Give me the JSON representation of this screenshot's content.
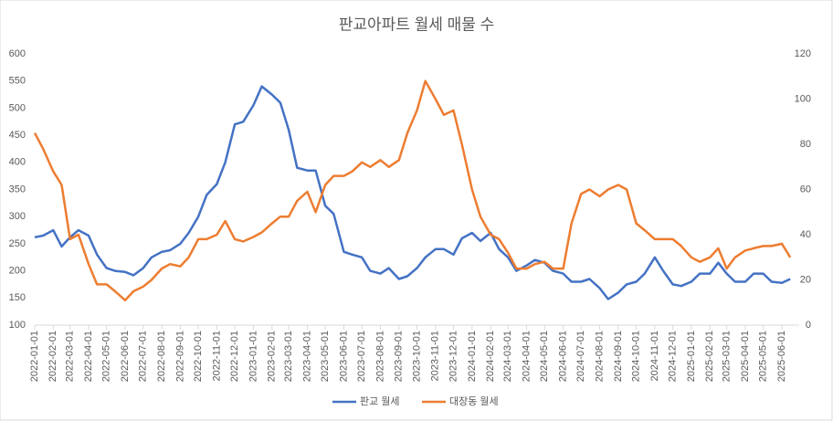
{
  "chart_data": {
    "type": "line",
    "title": "판교아파트 월세 매물 수",
    "x": [
      "2022-01-01",
      "2022-01-15",
      "2022-02-01",
      "2022-02-15",
      "2022-03-01",
      "2022-03-15",
      "2022-04-01",
      "2022-04-15",
      "2022-05-01",
      "2022-05-15",
      "2022-06-01",
      "2022-06-15",
      "2022-07-01",
      "2022-07-15",
      "2022-08-01",
      "2022-08-15",
      "2022-09-01",
      "2022-09-15",
      "2022-10-01",
      "2022-10-15",
      "2022-11-01",
      "2022-11-15",
      "2022-12-01",
      "2022-12-15",
      "2023-01-01",
      "2023-01-15",
      "2023-02-01",
      "2023-02-15",
      "2023-03-01",
      "2023-03-15",
      "2023-04-01",
      "2023-04-15",
      "2023-05-01",
      "2023-05-15",
      "2023-06-01",
      "2023-06-15",
      "2023-07-01",
      "2023-07-15",
      "2023-08-01",
      "2023-08-15",
      "2023-09-01",
      "2023-09-15",
      "2023-10-01",
      "2023-10-15",
      "2023-11-01",
      "2023-11-15",
      "2023-12-01",
      "2023-12-15",
      "2024-01-01",
      "2024-01-15",
      "2024-02-01",
      "2024-02-15",
      "2024-03-01",
      "2024-03-15",
      "2024-04-01",
      "2024-04-15",
      "2024-05-01",
      "2024-05-15",
      "2024-06-01",
      "2024-06-15",
      "2024-07-01",
      "2024-07-15",
      "2024-08-01",
      "2024-08-15",
      "2024-09-01",
      "2024-09-15",
      "2024-10-01",
      "2024-10-15",
      "2024-11-01",
      "2024-11-15",
      "2024-12-01",
      "2024-12-15",
      "2025-01-01",
      "2025-01-15",
      "2025-02-01",
      "2025-02-15",
      "2025-03-01",
      "2025-03-15",
      "2025-04-01",
      "2025-04-15",
      "2025-05-01",
      "2025-05-15",
      "2025-06-01",
      "2025-06-15"
    ],
    "series": [
      {
        "name": "판교 월세",
        "color": "#4472c4",
        "axis": "y",
        "values": [
          262,
          265,
          275,
          245,
          262,
          275,
          265,
          230,
          205,
          200,
          198,
          192,
          205,
          225,
          235,
          238,
          250,
          270,
          300,
          340,
          360,
          400,
          470,
          475,
          505,
          540,
          525,
          510,
          460,
          390,
          385,
          385,
          320,
          305,
          235,
          230,
          225,
          200,
          195,
          205,
          185,
          190,
          205,
          225,
          240,
          240,
          230,
          260,
          270,
          255,
          270,
          240,
          225,
          200,
          210,
          220,
          215,
          200,
          195,
          180,
          180,
          185,
          168,
          148,
          160,
          175,
          180,
          195,
          225,
          200,
          175,
          172,
          180,
          195,
          195,
          215,
          195,
          180,
          180,
          195,
          195,
          180,
          178,
          185
        ]
      },
      {
        "name": "대장동 월세",
        "color": "#ed7d31",
        "axis": "y2",
        "values": [
          85,
          78,
          68,
          62,
          38,
          40,
          27,
          18,
          18,
          15,
          11,
          15,
          17,
          20,
          25,
          27,
          26,
          30,
          38,
          38,
          40,
          46,
          38,
          37,
          39,
          41,
          45,
          48,
          48,
          55,
          59,
          50,
          62,
          66,
          66,
          68,
          72,
          70,
          73,
          70,
          73,
          85,
          95,
          108,
          100,
          93,
          95,
          80,
          60,
          48,
          40,
          38,
          32,
          25,
          25,
          27,
          28,
          25,
          25,
          45,
          58,
          60,
          57,
          60,
          62,
          60,
          45,
          42,
          38,
          38,
          38,
          35,
          30,
          28,
          30,
          34,
          25,
          30,
          33,
          34,
          35,
          35,
          36,
          30
        ]
      }
    ],
    "xlim": [
      "2022-01-01",
      "2025-06-30"
    ],
    "xticks": [
      "2022-01-01",
      "2022-02-01",
      "2022-03-01",
      "2022-04-01",
      "2022-05-01",
      "2022-06-01",
      "2022-07-01",
      "2022-08-01",
      "2022-09-01",
      "2022-10-01",
      "2022-11-01",
      "2022-12-01",
      "2023-01-01",
      "2023-02-01",
      "2023-03-01",
      "2023-04-01",
      "2023-05-01",
      "2023-06-01",
      "2023-07-01",
      "2023-08-01",
      "2023-09-01",
      "2023-10-01",
      "2023-11-01",
      "2023-12-01",
      "2024-01-01",
      "2024-02-01",
      "2024-03-01",
      "2024-04-01",
      "2024-05-01",
      "2024-06-01",
      "2024-07-01",
      "2024-08-01",
      "2024-09-01",
      "2024-10-01",
      "2024-11-01",
      "2024-12-01",
      "2025-01-01",
      "2025-02-01",
      "2025-03-01",
      "2025-04-01",
      "2025-05-01",
      "2025-06-01"
    ],
    "ylim": [
      100,
      600
    ],
    "yticks": [
      100,
      150,
      200,
      250,
      300,
      350,
      400,
      450,
      500,
      550,
      600
    ],
    "y2lim": [
      0,
      120
    ],
    "y2ticks": [
      0,
      20,
      40,
      60,
      80,
      100,
      120
    ],
    "grid": false,
    "legend": "bottom"
  }
}
